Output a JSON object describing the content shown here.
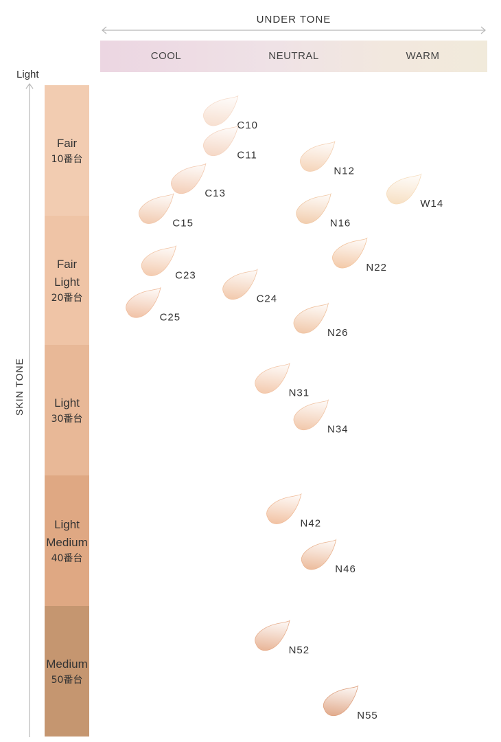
{
  "chart_data": {
    "type": "scatter",
    "xlabel": "UNDER TONE",
    "ylabel": "SKIN TONE",
    "y_top_label": "Light",
    "x_categories": [
      "COOL",
      "NEUTRAL",
      "WARM"
    ],
    "y_bands": [
      {
        "name": "Fair",
        "range": "10番台",
        "color": "#f2ccb1"
      },
      {
        "name": "Fair\nLight",
        "range": "20番台",
        "color": "#efc4a6"
      },
      {
        "name": "Light",
        "range": "30番台",
        "color": "#e8b897"
      },
      {
        "name": "Light\nMedium",
        "range": "40番台",
        "color": "#dfa883"
      },
      {
        "name": "Medium",
        "range": "50番台",
        "color": "#c59670"
      }
    ],
    "shades": [
      {
        "name": "C10",
        "undertone": 0.55,
        "depth": 0.2,
        "color": "#f6dccb"
      },
      {
        "name": "C11",
        "undertone": 0.55,
        "depth": 0.43,
        "color": "#f4d3bf"
      },
      {
        "name": "C13",
        "undertone": 0.3,
        "depth": 0.72,
        "color": "#f2c9b0"
      },
      {
        "name": "C15",
        "undertone": 0.05,
        "depth": 0.95,
        "color": "#f0c5a8"
      },
      {
        "name": "N12",
        "undertone": 1.3,
        "depth": 0.55,
        "color": "#f4d0b2"
      },
      {
        "name": "N16",
        "undertone": 1.27,
        "depth": 0.95,
        "color": "#f0c8a5"
      },
      {
        "name": "W14",
        "undertone": 1.97,
        "depth": 0.8,
        "color": "#f6dcbc"
      },
      {
        "name": "C23",
        "undertone": 0.07,
        "depth": 1.35,
        "color": "#f2c5a6"
      },
      {
        "name": "C24",
        "undertone": 0.7,
        "depth": 1.53,
        "color": "#f0c3a3"
      },
      {
        "name": "C25",
        "undertone": -0.05,
        "depth": 1.67,
        "color": "#efbb9c"
      },
      {
        "name": "N22",
        "undertone": 1.55,
        "depth": 1.29,
        "color": "#f2c49f"
      },
      {
        "name": "N26",
        "undertone": 1.25,
        "depth": 1.79,
        "color": "#efc2a0"
      },
      {
        "name": "N31",
        "undertone": 0.95,
        "depth": 2.25,
        "color": "#f2c4a5"
      },
      {
        "name": "N34",
        "undertone": 1.25,
        "depth": 2.53,
        "color": "#f0c2a2"
      },
      {
        "name": "N42",
        "undertone": 1.04,
        "depth": 3.25,
        "color": "#f0bb98"
      },
      {
        "name": "N46",
        "undertone": 1.31,
        "depth": 3.6,
        "color": "#eab491"
      },
      {
        "name": "N52",
        "undertone": 0.95,
        "depth": 4.22,
        "color": "#e6ad8c"
      },
      {
        "name": "N55",
        "undertone": 1.48,
        "depth": 4.72,
        "color": "#dea17f"
      }
    ]
  }
}
